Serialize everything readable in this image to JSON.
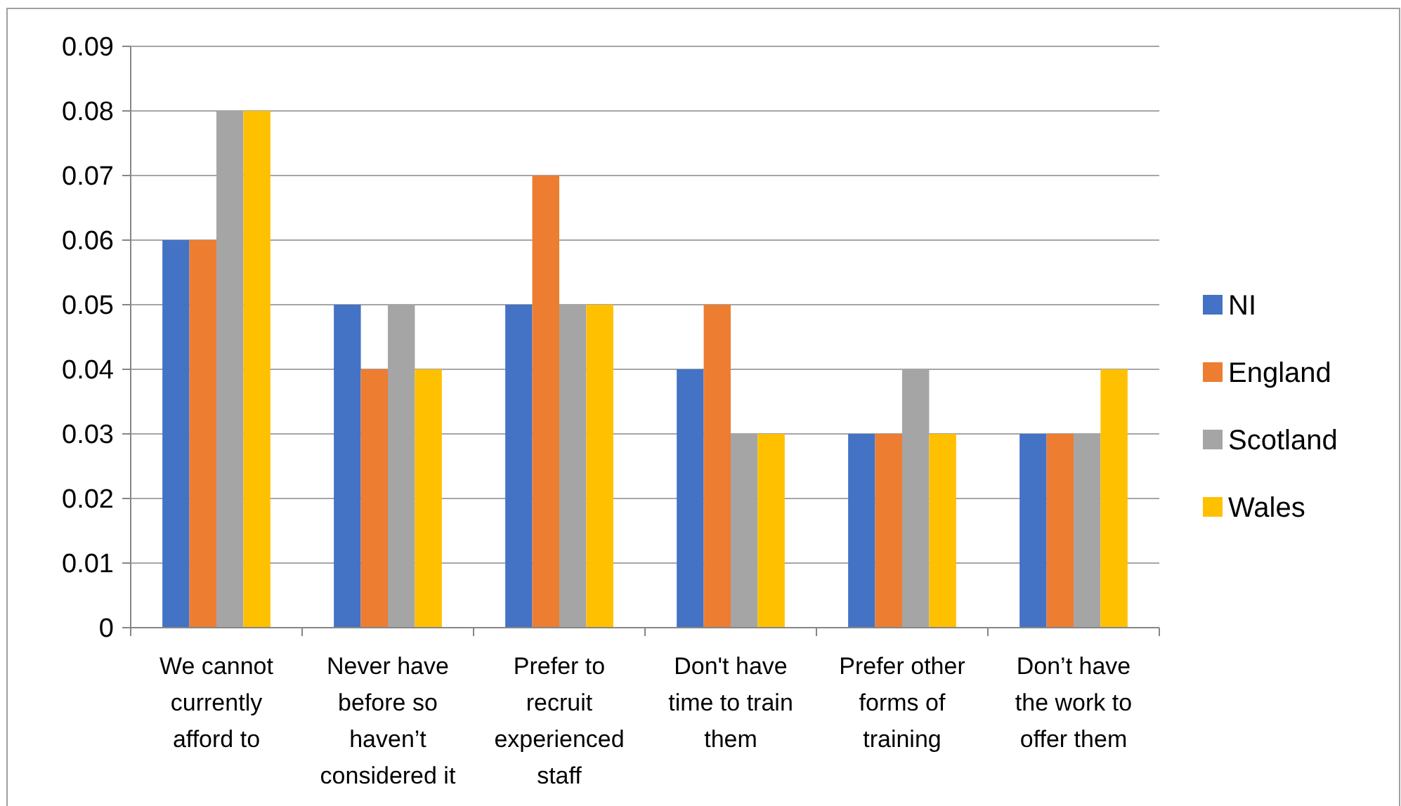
{
  "chart_data": {
    "type": "bar",
    "categories": [
      "We cannot currently afford to",
      "Never have before so haven’t considered it",
      "Prefer to recruit experienced staff",
      "Don't have time to train them",
      "Prefer other forms of training",
      "Don’t have the work to offer them"
    ],
    "series": [
      {
        "name": "NI",
        "color": "#4472c4",
        "values": [
          0.06,
          0.05,
          0.05,
          0.04,
          0.03,
          0.03
        ]
      },
      {
        "name": "England",
        "color": "#ed7d31",
        "values": [
          0.06,
          0.04,
          0.07,
          0.05,
          0.03,
          0.03
        ]
      },
      {
        "name": "Scotland",
        "color": "#a5a5a5",
        "values": [
          0.08,
          0.05,
          0.05,
          0.03,
          0.04,
          0.03
        ]
      },
      {
        "name": "Wales",
        "color": "#ffc000",
        "values": [
          0.08,
          0.04,
          0.05,
          0.03,
          0.03,
          0.04
        ]
      }
    ],
    "ylim": [
      0,
      0.09
    ],
    "yticks": [
      0,
      0.01,
      0.02,
      0.03,
      0.04,
      0.05,
      0.06,
      0.07,
      0.08,
      0.09
    ],
    "grid": "y",
    "legend": "right"
  }
}
